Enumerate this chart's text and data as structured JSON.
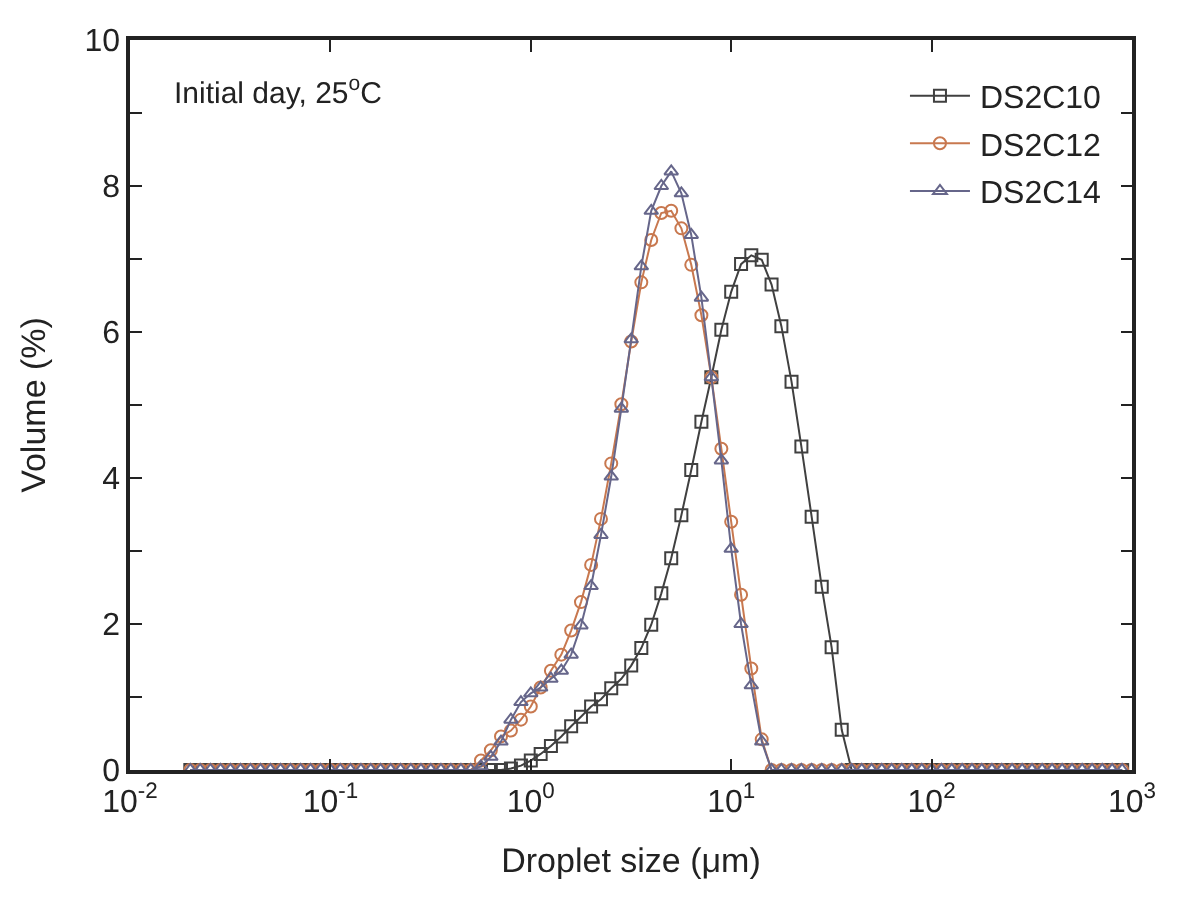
{
  "chart_data": {
    "type": "line",
    "xlabel": "Droplet size (μm)",
    "ylabel": "Volume (%)",
    "annotations": [
      "Initial day, 25$^{o}$C"
    ],
    "x": [
      0.02,
      0.0224,
      0.0252,
      0.0283,
      0.0317,
      0.0356,
      0.0399,
      0.0448,
      0.0502,
      0.0564,
      0.0632,
      0.071,
      0.0796,
      0.0893,
      0.1,
      0.112,
      0.126,
      0.142,
      0.159,
      0.178,
      0.2,
      0.224,
      0.252,
      0.283,
      0.317,
      0.356,
      0.399,
      0.448,
      0.502,
      0.564,
      0.632,
      0.71,
      0.796,
      0.893,
      1.0,
      1.12,
      1.26,
      1.42,
      1.59,
      1.78,
      2.0,
      2.24,
      2.52,
      2.83,
      3.17,
      3.56,
      3.99,
      4.48,
      5.02,
      5.64,
      6.32,
      7.1,
      7.96,
      8.93,
      10.0,
      11.2,
      12.6,
      14.2,
      15.9,
      17.8,
      20.0,
      22.4,
      25.2,
      28.3,
      31.7,
      35.6,
      39.9,
      44.8,
      50.2,
      56.4,
      63.2,
      71.0,
      79.6,
      89.3,
      100,
      112,
      126,
      142,
      159,
      178,
      200,
      224,
      252,
      283,
      317,
      356,
      399,
      448,
      502,
      564,
      632,
      710,
      796,
      893
    ],
    "series": [
      {
        "name": "DS2C10",
        "color": "#404040",
        "marker": "square",
        "values": [
          0,
          0,
          0,
          0,
          0,
          0,
          0,
          0,
          0,
          0,
          0,
          0,
          0,
          0,
          0,
          0,
          0,
          0,
          0,
          0,
          0,
          0,
          0,
          0,
          0,
          0,
          0,
          0,
          0,
          0,
          0,
          0,
          0.02,
          0.06,
          0.13,
          0.22,
          0.33,
          0.46,
          0.6,
          0.73,
          0.87,
          0.97,
          1.12,
          1.25,
          1.43,
          1.67,
          1.99,
          2.42,
          2.9,
          3.49,
          4.11,
          4.77,
          5.38,
          6.03,
          6.55,
          6.93,
          7.05,
          6.99,
          6.65,
          6.08,
          5.32,
          4.43,
          3.47,
          2.51,
          1.68,
          0.55,
          0,
          0,
          0,
          0,
          0,
          0,
          0,
          0,
          0,
          0,
          0,
          0,
          0,
          0,
          0,
          0,
          0,
          0,
          0,
          0,
          0,
          0,
          0,
          0,
          0,
          0,
          0,
          0
        ]
      },
      {
        "name": "DS2C12",
        "color": "#c8784f",
        "marker": "circle",
        "values": [
          0,
          0,
          0,
          0,
          0,
          0,
          0,
          0,
          0,
          0,
          0,
          0,
          0,
          0,
          0,
          0,
          0,
          0,
          0,
          0,
          0,
          0,
          0,
          0,
          0,
          0,
          0,
          0,
          0,
          0.13,
          0.27,
          0.46,
          0.54,
          0.69,
          0.87,
          1.13,
          1.36,
          1.58,
          1.91,
          2.3,
          2.81,
          3.44,
          4.2,
          5.01,
          5.87,
          6.68,
          7.26,
          7.63,
          7.66,
          7.42,
          6.92,
          6.23,
          5.38,
          4.4,
          3.4,
          2.4,
          1.39,
          0.42,
          0,
          0,
          0,
          0,
          0,
          0,
          0,
          0,
          0,
          0,
          0,
          0,
          0,
          0,
          0,
          0,
          0,
          0,
          0,
          0,
          0,
          0,
          0,
          0,
          0,
          0,
          0,
          0,
          0,
          0,
          0,
          0,
          0,
          0,
          0,
          0
        ]
      },
      {
        "name": "DS2C14",
        "color": "#66668a",
        "marker": "triangle",
        "values": [
          0,
          0,
          0,
          0,
          0,
          0,
          0,
          0,
          0,
          0,
          0,
          0,
          0,
          0,
          0,
          0,
          0,
          0,
          0,
          0,
          0,
          0,
          0,
          0,
          0,
          0,
          0,
          0,
          0,
          0.05,
          0.18,
          0.39,
          0.69,
          0.93,
          1.05,
          1.13,
          1.25,
          1.36,
          1.58,
          1.98,
          2.52,
          3.22,
          4.02,
          4.95,
          5.9,
          6.9,
          7.66,
          8.0,
          8.2,
          7.9,
          7.33,
          6.47,
          5.38,
          4.24,
          3.03,
          2.0,
          1.16,
          0.39,
          0,
          0,
          0,
          0,
          0,
          0,
          0,
          0,
          0,
          0,
          0,
          0,
          0,
          0,
          0,
          0,
          0,
          0,
          0,
          0,
          0,
          0,
          0,
          0,
          0,
          0,
          0,
          0,
          0,
          0,
          0,
          0,
          0,
          0,
          0,
          0
        ]
      }
    ],
    "log": "x",
    "xlim": [
      0.01,
      1000
    ],
    "xticks": [
      {
        "value": 0.01,
        "label": "10$^{-2}$"
      },
      {
        "value": 0.1,
        "label": "10$^{-1}$"
      },
      {
        "value": 1,
        "label": "10$^{0}$"
      },
      {
        "value": 10,
        "label": "10$^{1}$"
      },
      {
        "value": 100,
        "label": "10$^{2}$"
      },
      {
        "value": 1000,
        "label": "10$^{3}$"
      }
    ],
    "ylim": [
      0,
      10
    ],
    "yticks": [
      0,
      {
        "value": 1,
        "label": null
      },
      2,
      {
        "value": 3,
        "label": null
      },
      4,
      {
        "value": 5,
        "label": null
      },
      6,
      {
        "value": 7,
        "label": null
      },
      8,
      {
        "value": 9,
        "label": null
      },
      10
    ],
    "legend": "top right",
    "line_style": "solid"
  }
}
